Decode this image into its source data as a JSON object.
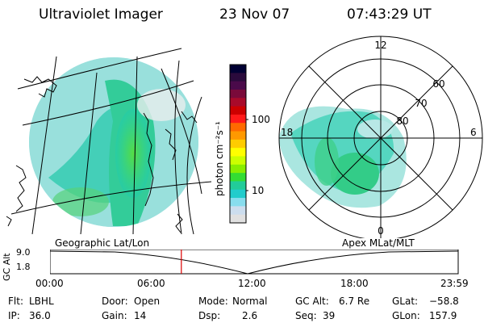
{
  "header": {
    "instrument": "Ultraviolet Imager",
    "date": "23 Nov 07",
    "time": "07:43:29 UT"
  },
  "geo_panel": {
    "label": "Geographic Lat/Lon"
  },
  "polar_panel": {
    "label": "Apex MLat/MLT",
    "mlt_labels": [
      "12",
      "18",
      "6",
      "0"
    ],
    "lat_labels": [
      "60",
      "70",
      "80"
    ]
  },
  "colorbar": {
    "unit_label": "photon cm⁻²s⁻¹",
    "ticks": [
      "100",
      "10"
    ],
    "colors": [
      "#000033",
      "#2a0a3c",
      "#4a0a4a",
      "#7a0a3a",
      "#a80a2a",
      "#cc0000",
      "#ff1a1a",
      "#ff6a00",
      "#ff9900",
      "#ffcc00",
      "#ffff00",
      "#ccff00",
      "#88ee00",
      "#33dd33",
      "#22cc99",
      "#22cccc",
      "#88ddee",
      "#ccddee",
      "#e0e0e0"
    ]
  },
  "altitude": {
    "axis_label": "GC Alt",
    "ticks": [
      "9.0",
      "1.8"
    ],
    "time_labels": [
      "00:00",
      "06:00",
      "12:00",
      "18:00",
      "23:59"
    ],
    "current_time_fraction": 0.3218
  },
  "status": {
    "filter_label": "Flt:",
    "filter_value": "LBHL",
    "ip_label": "IP:",
    "ip_value": "36.0",
    "door_label": "Door:",
    "door_value": "Open",
    "gain_label": "Gain:",
    "gain_value": "14",
    "mode_label": "Mode:",
    "mode_value": "Normal",
    "dsp_label": "Dsp:",
    "dsp_value": "2.6",
    "gcalt_label": "GC Alt:",
    "gcalt_value": "6.7 Re",
    "seq_label": "Seq:",
    "seq_value": "39",
    "glat_label": "GLat:",
    "glat_value": "−58.8",
    "glon_label": "GLon:",
    "glon_value": "157.9"
  }
}
